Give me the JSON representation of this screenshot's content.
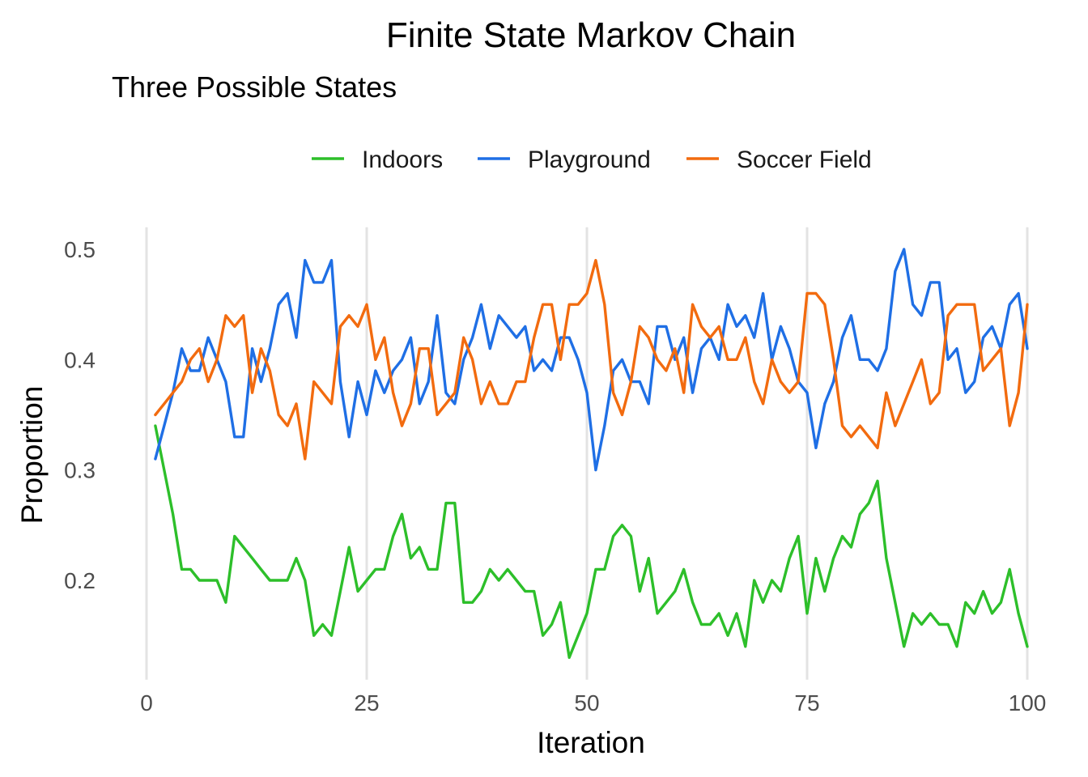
{
  "chart_data": {
    "type": "line",
    "title": "Finite State Markov Chain",
    "subtitle": "Three Possible States",
    "xlabel": "Iteration",
    "ylabel": "Proportion",
    "xlim": [
      0,
      100
    ],
    "ylim": [
      0.11,
      0.52
    ],
    "x_ticks": [
      0,
      25,
      50,
      75,
      100
    ],
    "y_ticks": [
      0.2,
      0.3,
      0.4,
      0.5
    ],
    "x_tick_labels": [
      "0",
      "25",
      "50",
      "75",
      "100"
    ],
    "y_tick_labels": [
      "0.2",
      "0.3",
      "0.4",
      "0.5"
    ],
    "grid": "vertical major lines only",
    "legend_position": "top",
    "x": [
      1,
      2,
      3,
      4,
      5,
      6,
      7,
      8,
      9,
      10,
      11,
      12,
      13,
      14,
      15,
      16,
      17,
      18,
      19,
      20,
      21,
      22,
      23,
      24,
      25,
      26,
      27,
      28,
      29,
      30,
      31,
      32,
      33,
      34,
      35,
      36,
      37,
      38,
      39,
      40,
      41,
      42,
      43,
      44,
      45,
      46,
      47,
      48,
      49,
      50,
      51,
      52,
      53,
      54,
      55,
      56,
      57,
      58,
      59,
      60,
      61,
      62,
      63,
      64,
      65,
      66,
      67,
      68,
      69,
      70,
      71,
      72,
      73,
      74,
      75,
      76,
      77,
      78,
      79,
      80,
      81,
      82,
      83,
      84,
      85,
      86,
      87,
      88,
      89,
      90,
      91,
      92,
      93,
      94,
      95,
      96,
      97,
      98,
      99,
      100
    ],
    "series": [
      {
        "name": "Indoors",
        "color": "#2dbf2a",
        "values": [
          0.34,
          0.3,
          0.26,
          0.21,
          0.21,
          0.2,
          0.2,
          0.2,
          0.18,
          0.24,
          0.23,
          0.22,
          0.21,
          0.2,
          0.2,
          0.2,
          0.22,
          0.2,
          0.15,
          0.16,
          0.15,
          0.19,
          0.23,
          0.19,
          0.2,
          0.21,
          0.21,
          0.24,
          0.26,
          0.22,
          0.23,
          0.21,
          0.21,
          0.27,
          0.27,
          0.18,
          0.18,
          0.19,
          0.21,
          0.2,
          0.21,
          0.2,
          0.19,
          0.19,
          0.15,
          0.16,
          0.18,
          0.13,
          0.15,
          0.17,
          0.21,
          0.21,
          0.24,
          0.25,
          0.24,
          0.19,
          0.22,
          0.17,
          0.18,
          0.19,
          0.21,
          0.18,
          0.16,
          0.16,
          0.17,
          0.15,
          0.17,
          0.14,
          0.2,
          0.18,
          0.2,
          0.19,
          0.22,
          0.24,
          0.17,
          0.22,
          0.19,
          0.22,
          0.24,
          0.23,
          0.26,
          0.27,
          0.29,
          0.22,
          0.18,
          0.14,
          0.17,
          0.16,
          0.17,
          0.16,
          0.16,
          0.14,
          0.18,
          0.17,
          0.19,
          0.17,
          0.18,
          0.21,
          0.17,
          0.14
        ]
      },
      {
        "name": "Playground",
        "color": "#1f6fe5",
        "values": [
          0.31,
          0.34,
          0.37,
          0.41,
          0.39,
          0.39,
          0.42,
          0.4,
          0.38,
          0.33,
          0.33,
          0.41,
          0.38,
          0.41,
          0.45,
          0.46,
          0.42,
          0.49,
          0.47,
          0.47,
          0.49,
          0.38,
          0.33,
          0.38,
          0.35,
          0.39,
          0.37,
          0.39,
          0.4,
          0.42,
          0.36,
          0.38,
          0.44,
          0.37,
          0.36,
          0.4,
          0.42,
          0.45,
          0.41,
          0.44,
          0.43,
          0.42,
          0.43,
          0.39,
          0.4,
          0.39,
          0.42,
          0.42,
          0.4,
          0.37,
          0.3,
          0.34,
          0.39,
          0.4,
          0.38,
          0.38,
          0.36,
          0.43,
          0.43,
          0.4,
          0.42,
          0.37,
          0.41,
          0.42,
          0.4,
          0.45,
          0.43,
          0.44,
          0.42,
          0.46,
          0.4,
          0.43,
          0.41,
          0.38,
          0.37,
          0.32,
          0.36,
          0.38,
          0.42,
          0.44,
          0.4,
          0.4,
          0.39,
          0.41,
          0.48,
          0.5,
          0.45,
          0.44,
          0.47,
          0.47,
          0.4,
          0.41,
          0.37,
          0.38,
          0.42,
          0.43,
          0.41,
          0.45,
          0.46,
          0.41
        ]
      },
      {
        "name": "Soccer Field",
        "color": "#f26b0f",
        "values": [
          0.35,
          0.36,
          0.37,
          0.38,
          0.4,
          0.41,
          0.38,
          0.4,
          0.44,
          0.43,
          0.44,
          0.37,
          0.41,
          0.39,
          0.35,
          0.34,
          0.36,
          0.31,
          0.38,
          0.37,
          0.36,
          0.43,
          0.44,
          0.43,
          0.45,
          0.4,
          0.42,
          0.37,
          0.34,
          0.36,
          0.41,
          0.41,
          0.35,
          0.36,
          0.37,
          0.42,
          0.4,
          0.36,
          0.38,
          0.36,
          0.36,
          0.38,
          0.38,
          0.42,
          0.45,
          0.45,
          0.4,
          0.45,
          0.45,
          0.46,
          0.49,
          0.45,
          0.37,
          0.35,
          0.38,
          0.43,
          0.42,
          0.4,
          0.39,
          0.41,
          0.37,
          0.45,
          0.43,
          0.42,
          0.43,
          0.4,
          0.4,
          0.42,
          0.38,
          0.36,
          0.4,
          0.38,
          0.37,
          0.38,
          0.46,
          0.46,
          0.45,
          0.4,
          0.34,
          0.33,
          0.34,
          0.33,
          0.32,
          0.37,
          0.34,
          0.36,
          0.38,
          0.4,
          0.36,
          0.37,
          0.44,
          0.45,
          0.45,
          0.45,
          0.39,
          0.4,
          0.41,
          0.34,
          0.37,
          0.45
        ]
      }
    ]
  }
}
